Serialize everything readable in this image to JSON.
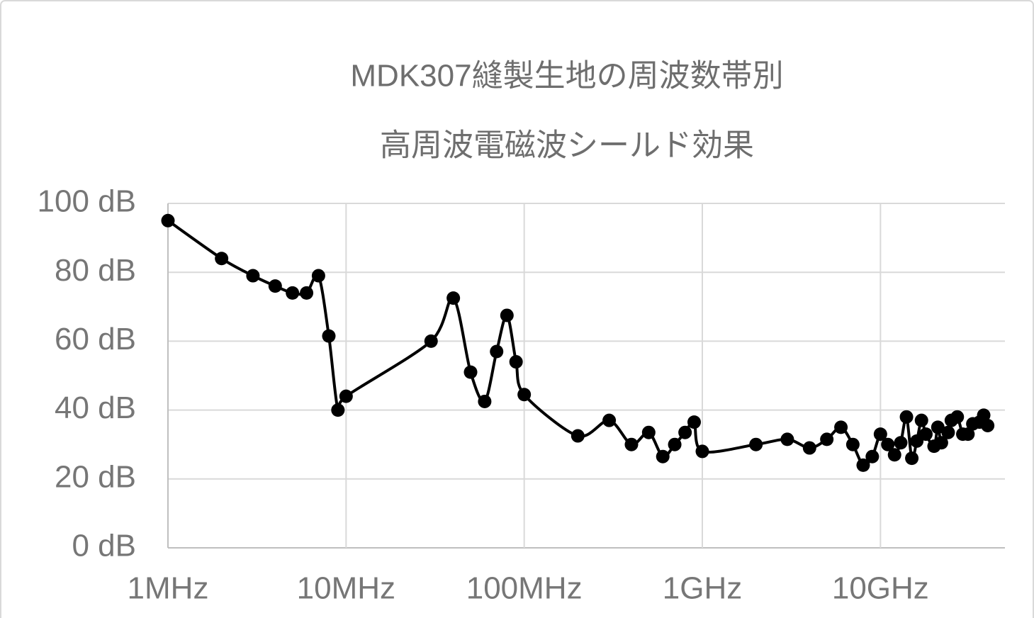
{
  "chart_data": {
    "type": "line",
    "title": [
      "MDK307縫製生地の周波数帯別",
      "高周波電磁波シールド効果"
    ],
    "x": [
      1,
      2,
      3,
      4,
      5,
      6,
      7,
      8,
      9,
      10,
      30,
      40,
      50,
      60,
      70,
      80,
      90,
      100,
      200,
      300,
      400,
      500,
      600,
      700,
      800,
      900,
      1000,
      2000,
      3000,
      4000,
      5000,
      6000,
      7000,
      8000,
      9000,
      10000,
      11000,
      12000,
      13000,
      14000,
      15000,
      16000,
      17000,
      18000,
      20000,
      21000,
      22000,
      24000,
      25000,
      27000,
      29000,
      31000,
      33000,
      36000,
      38000,
      40000
    ],
    "values": [
      95,
      84,
      79,
      76,
      74,
      74,
      79,
      61.5,
      40,
      44,
      60,
      72.5,
      51,
      42.5,
      57,
      67.5,
      54,
      44.5,
      32.5,
      37,
      30,
      33.5,
      26.5,
      30,
      33.5,
      36.5,
      28,
      30,
      31.5,
      29,
      31.5,
      35,
      30,
      24,
      26.5,
      33,
      30,
      27,
      30.5,
      38,
      26,
      31,
      37,
      33,
      29.5,
      35,
      30.5,
      33.5,
      37,
      38,
      33,
      33,
      36,
      36.5,
      38.5,
      35.5
    ],
    "color": "#000000",
    "xscale": "log",
    "xlim": [
      1,
      50000
    ],
    "xticks": [
      {
        "value": 1,
        "label": "1MHz"
      },
      {
        "value": 10,
        "label": "10MHz"
      },
      {
        "value": 100,
        "label": "100MHz"
      },
      {
        "value": 1000,
        "label": "1GHz"
      },
      {
        "value": 10000,
        "label": "10GHz"
      }
    ],
    "ylim": [
      0,
      100
    ],
    "yticks": [
      {
        "value": 0,
        "label": "0 dB"
      },
      {
        "value": 20,
        "label": "20 dB"
      },
      {
        "value": 40,
        "label": "40 dB"
      },
      {
        "value": 60,
        "label": "60 dB"
      },
      {
        "value": 80,
        "label": "80 dB"
      },
      {
        "value": 100,
        "label": "100 dB"
      }
    ],
    "grid": true
  }
}
